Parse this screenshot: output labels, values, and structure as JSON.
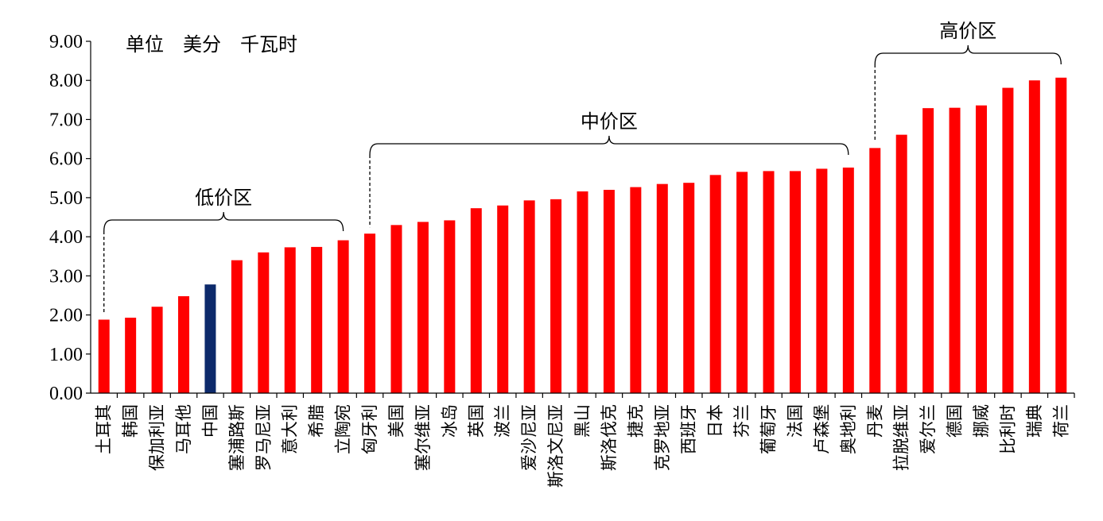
{
  "unit_label": "单位　美分　千瓦时",
  "chart_data": {
    "type": "bar",
    "ylim": [
      0,
      9
    ],
    "yticks": [
      "0.00",
      "1.00",
      "2.00",
      "3.00",
      "4.00",
      "5.00",
      "6.00",
      "7.00",
      "8.00",
      "9.00"
    ],
    "grid": false,
    "colors": {
      "default": "#ff0000",
      "highlight": "#0d2a6b"
    },
    "highlight_category": "中国",
    "categories": [
      "土耳其",
      "韩国",
      "保加利亚",
      "马耳他",
      "中国",
      "塞浦路斯",
      "罗马尼亚",
      "意大利",
      "希腊",
      "立陶宛",
      "匈牙利",
      "美国",
      "塞尔维亚",
      "冰岛",
      "英国",
      "波兰",
      "爱沙尼亚",
      "斯洛文尼亚",
      "黑山",
      "斯洛伐克",
      "捷克",
      "克罗地亚",
      "西班牙",
      "日本",
      "芬兰",
      "葡萄牙",
      "法国",
      "卢森堡",
      "奥地利",
      "丹麦",
      "拉脱维亚",
      "爱尔兰",
      "德国",
      "挪威",
      "比利时",
      "瑞典",
      "荷兰"
    ],
    "values": [
      1.88,
      1.93,
      2.21,
      2.48,
      2.78,
      3.4,
      3.6,
      3.73,
      3.74,
      3.91,
      4.08,
      4.3,
      4.38,
      4.42,
      4.73,
      4.8,
      4.93,
      4.96,
      5.16,
      5.2,
      5.27,
      5.35,
      5.38,
      5.58,
      5.66,
      5.68,
      5.68,
      5.74,
      5.77,
      6.27,
      6.61,
      7.29,
      7.3,
      7.36,
      7.81,
      8.0,
      8.07
    ],
    "regions": [
      {
        "label": "低价区",
        "start": 0,
        "end": 9
      },
      {
        "label": "中价区",
        "start": 10,
        "end": 28
      },
      {
        "label": "高价区",
        "start": 29,
        "end": 36
      }
    ]
  }
}
